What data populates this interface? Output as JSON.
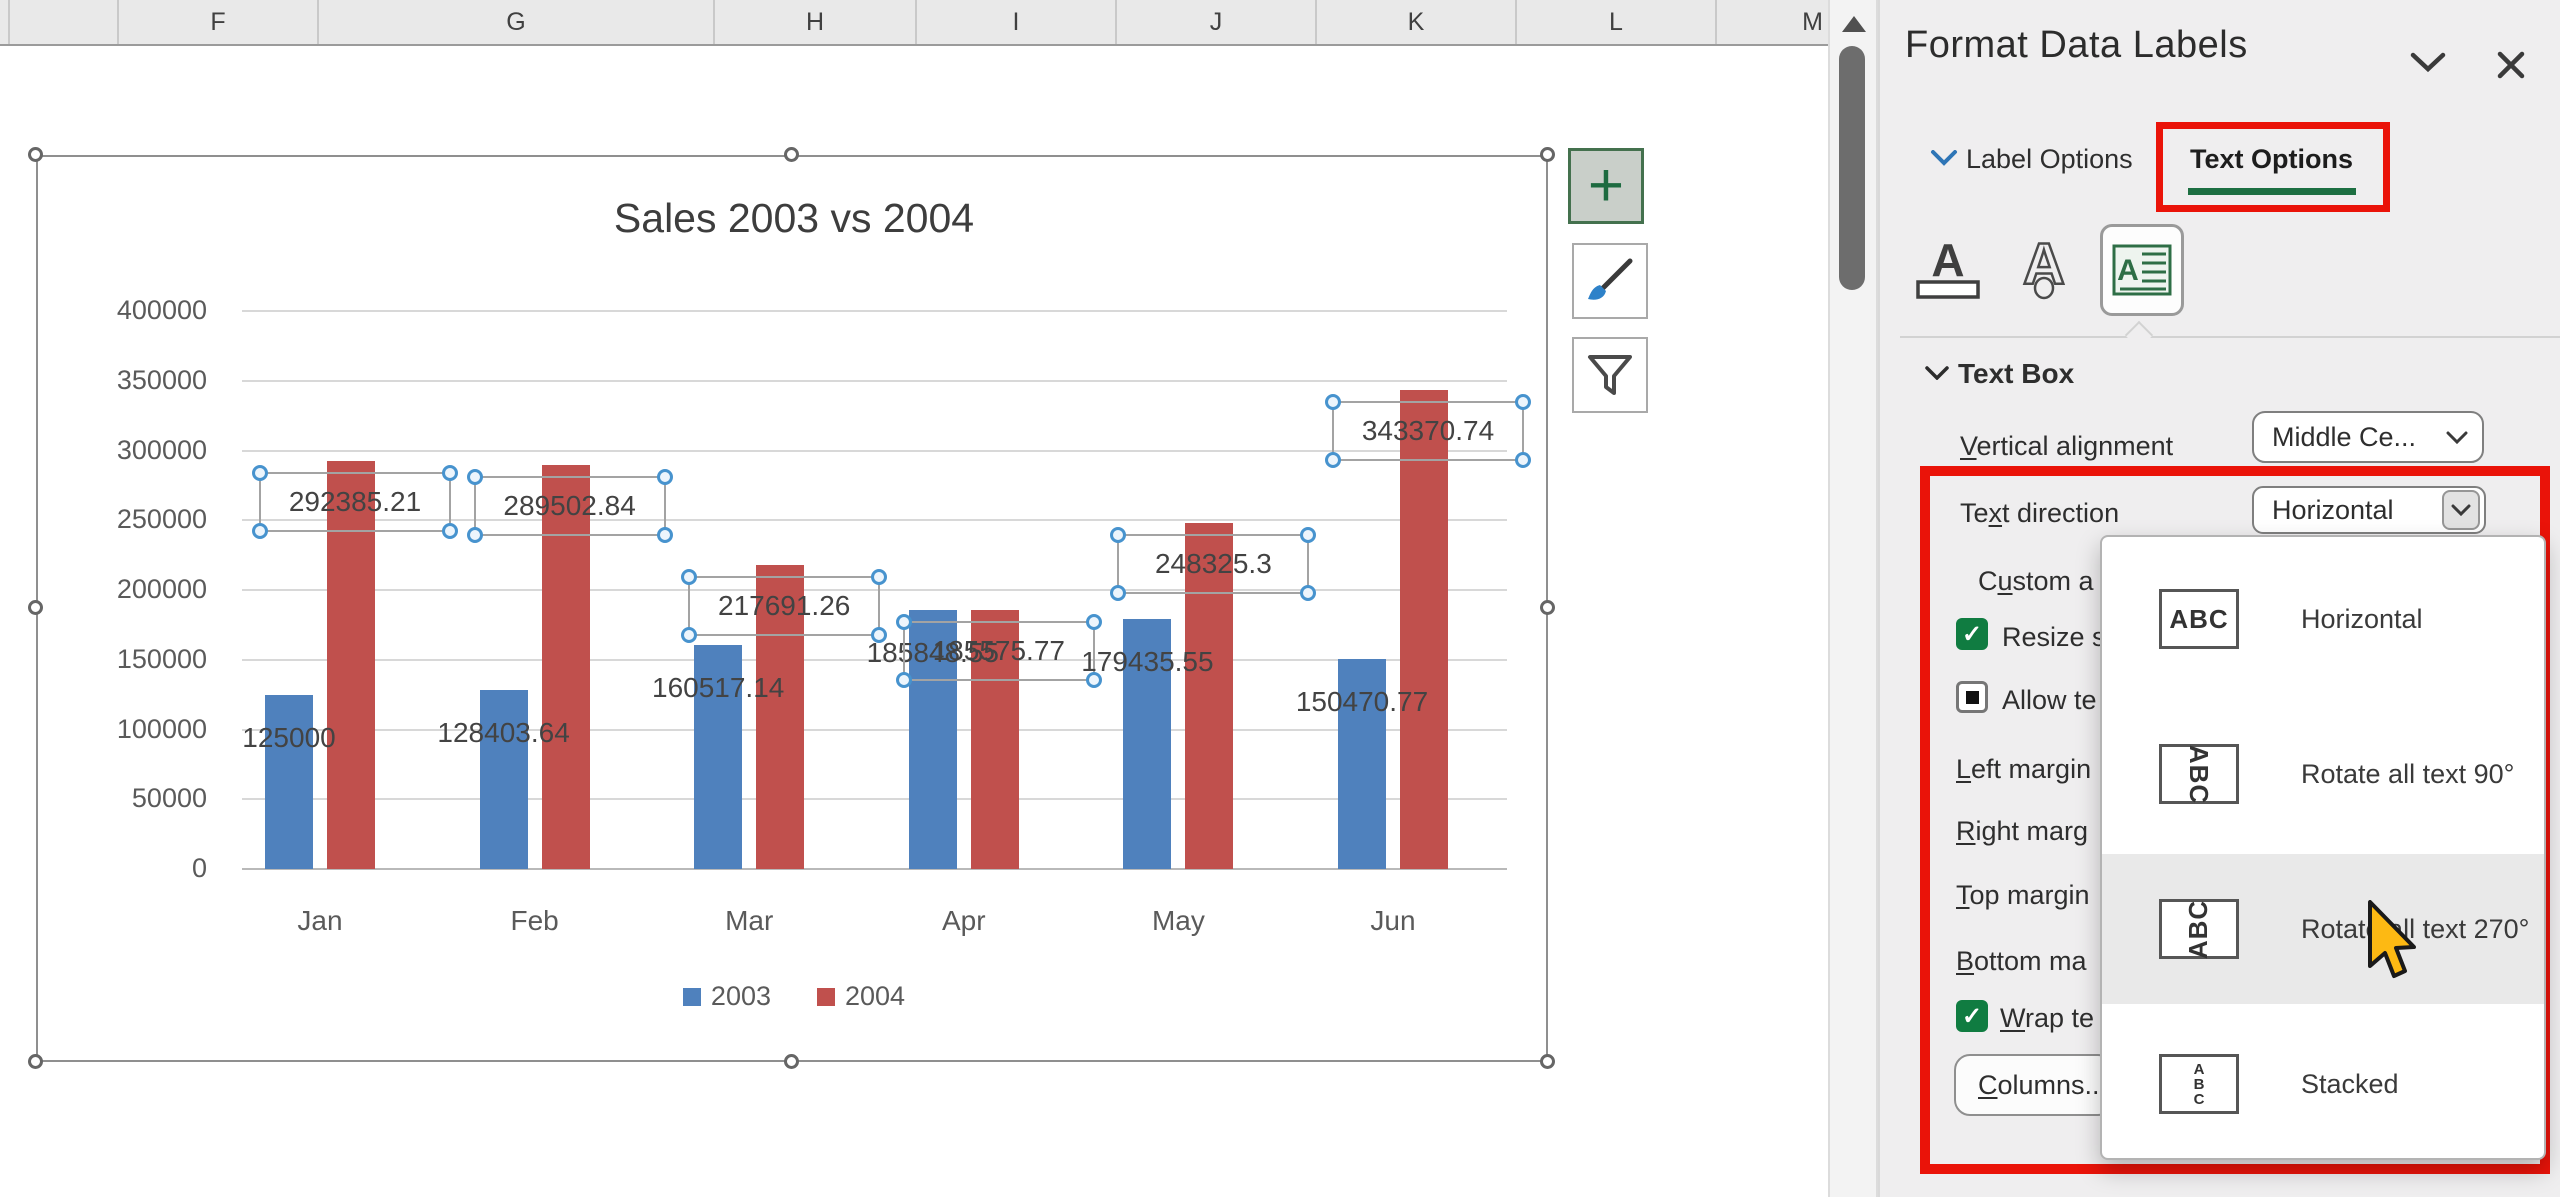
{
  "spreadsheet": {
    "columns": [
      "F",
      "G",
      "H",
      "I",
      "J",
      "K",
      "L",
      "M"
    ]
  },
  "chart_data": {
    "type": "bar",
    "title": "Sales 2003 vs 2004",
    "categories": [
      "Jan",
      "Feb",
      "Mar",
      "Apr",
      "May",
      "Jun"
    ],
    "series": [
      {
        "name": "2003",
        "color": "#4f81bd",
        "values": [
          125000,
          128403.64,
          160517.14,
          185848.55,
          179435.55,
          150470.77
        ],
        "labels": [
          "125000",
          "128403.64",
          "160517.14",
          "185848.55",
          "179435.55",
          "150470.77"
        ]
      },
      {
        "name": "2004",
        "color": "#c0504d",
        "values": [
          292385.21,
          289502.84,
          217691.26,
          185575.77,
          248325.3,
          343370.74
        ],
        "labels": [
          "292385.21",
          "289502.84",
          "217691.26",
          "185575.77",
          "248325.3",
          "343370.74"
        ]
      }
    ],
    "ylim": [
      0,
      400000
    ],
    "yticks": [
      0,
      50000,
      100000,
      150000,
      200000,
      250000,
      300000,
      350000,
      400000
    ],
    "grid": "horizontal",
    "legend_position": "bottom",
    "selected_labels_series": "2004"
  },
  "chart_tools": {
    "elements_glyph": "+"
  },
  "panel": {
    "title": "Format Data Labels",
    "tabs": {
      "label_options": "Label Options",
      "text_options": "Text Options"
    },
    "section_header": "Text Box",
    "fields": {
      "vertical_alignment": {
        "t": "Vertical alignment",
        "u": 0,
        "value": "Middle Ce..."
      },
      "text_direction": {
        "t": "Text direction",
        "u": 2,
        "value": "Horizontal"
      }
    },
    "options": {
      "custom_angle": {
        "t": "Custom a",
        "u": 1
      },
      "resize_shape": {
        "t": "Resize sh",
        "state": "checked"
      },
      "allow_text": {
        "t": "Allow te",
        "state": "mixed"
      },
      "left_margin": {
        "t": "Left margin",
        "u": 0
      },
      "right_margin": {
        "t": "Right marg",
        "u": 0
      },
      "top_margin": {
        "t": "Top margin",
        "u": 0
      },
      "bottom_margin": {
        "t": "Bottom ma",
        "u": 0
      },
      "wrap_text": {
        "t": "Wrap te",
        "u": 0,
        "state": "checked"
      },
      "columns_button": {
        "t": "Columns...",
        "u": 0
      }
    },
    "check_glyph": "✓"
  },
  "menu": {
    "items": [
      {
        "icon": "abc-horizontal-icon",
        "icon_text": "ABC",
        "label": "Horizontal",
        "highlighted": false
      },
      {
        "icon": "abc-rotate-90-icon",
        "icon_text": "ABC",
        "label": "Rotate all text 90°",
        "highlighted": false
      },
      {
        "icon": "abc-rotate-270-icon",
        "icon_text": "ABC",
        "label": "Rotate all text 270°",
        "highlighted": true
      },
      {
        "icon": "abc-stacked-icon",
        "icon_text": "ABC",
        "label": "Stacked",
        "highlighted": false
      }
    ]
  }
}
